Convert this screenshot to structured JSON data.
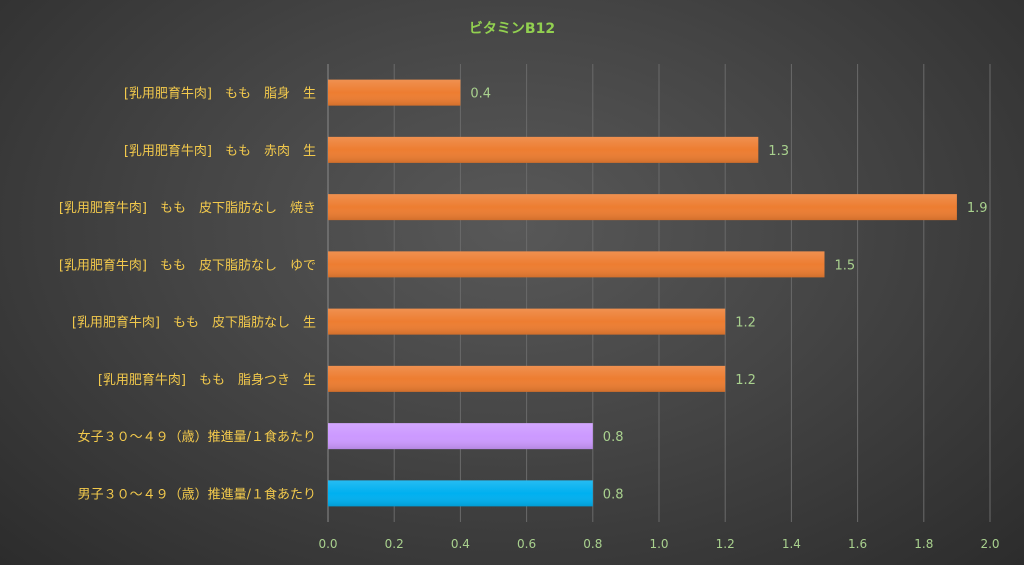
{
  "chart_data": {
    "type": "bar",
    "orientation": "horizontal",
    "title": "ビタミンB12",
    "categories": [
      "[乳用肥育牛肉]　もも　脂身　生",
      "[乳用肥育牛肉]　もも　赤肉　生",
      "[乳用肥育牛肉]　もも　皮下脂肪なし　焼き",
      "[乳用肥育牛肉]　もも　皮下脂肪なし　ゆで",
      "[乳用肥育牛肉]　もも　皮下脂肪なし　生",
      "[乳用肥育牛肉]　もも　脂身つき　生",
      "女子３０～４９（歳）推進量/１食あたり",
      "男子３０～４９（歳）推進量/１食あたり"
    ],
    "values": [
      0.4,
      1.3,
      1.9,
      1.5,
      1.2,
      1.2,
      0.8,
      0.8
    ],
    "value_labels": [
      "0.4",
      "1.3",
      "1.9",
      "1.5",
      "1.2",
      "1.2",
      "0.8",
      "0.8"
    ],
    "bar_colors": [
      "#ed7d31",
      "#ed7d31",
      "#ed7d31",
      "#ed7d31",
      "#ed7d31",
      "#ed7d31",
      "#cc99ff",
      "#00b0f0"
    ],
    "xlim": [
      0,
      2.0
    ],
    "xticks": [
      "0.0",
      "0.2",
      "0.4",
      "0.6",
      "0.8",
      "1.0",
      "1.2",
      "1.4",
      "1.6",
      "1.8",
      "2.0"
    ],
    "grid": true,
    "legend": "none"
  }
}
